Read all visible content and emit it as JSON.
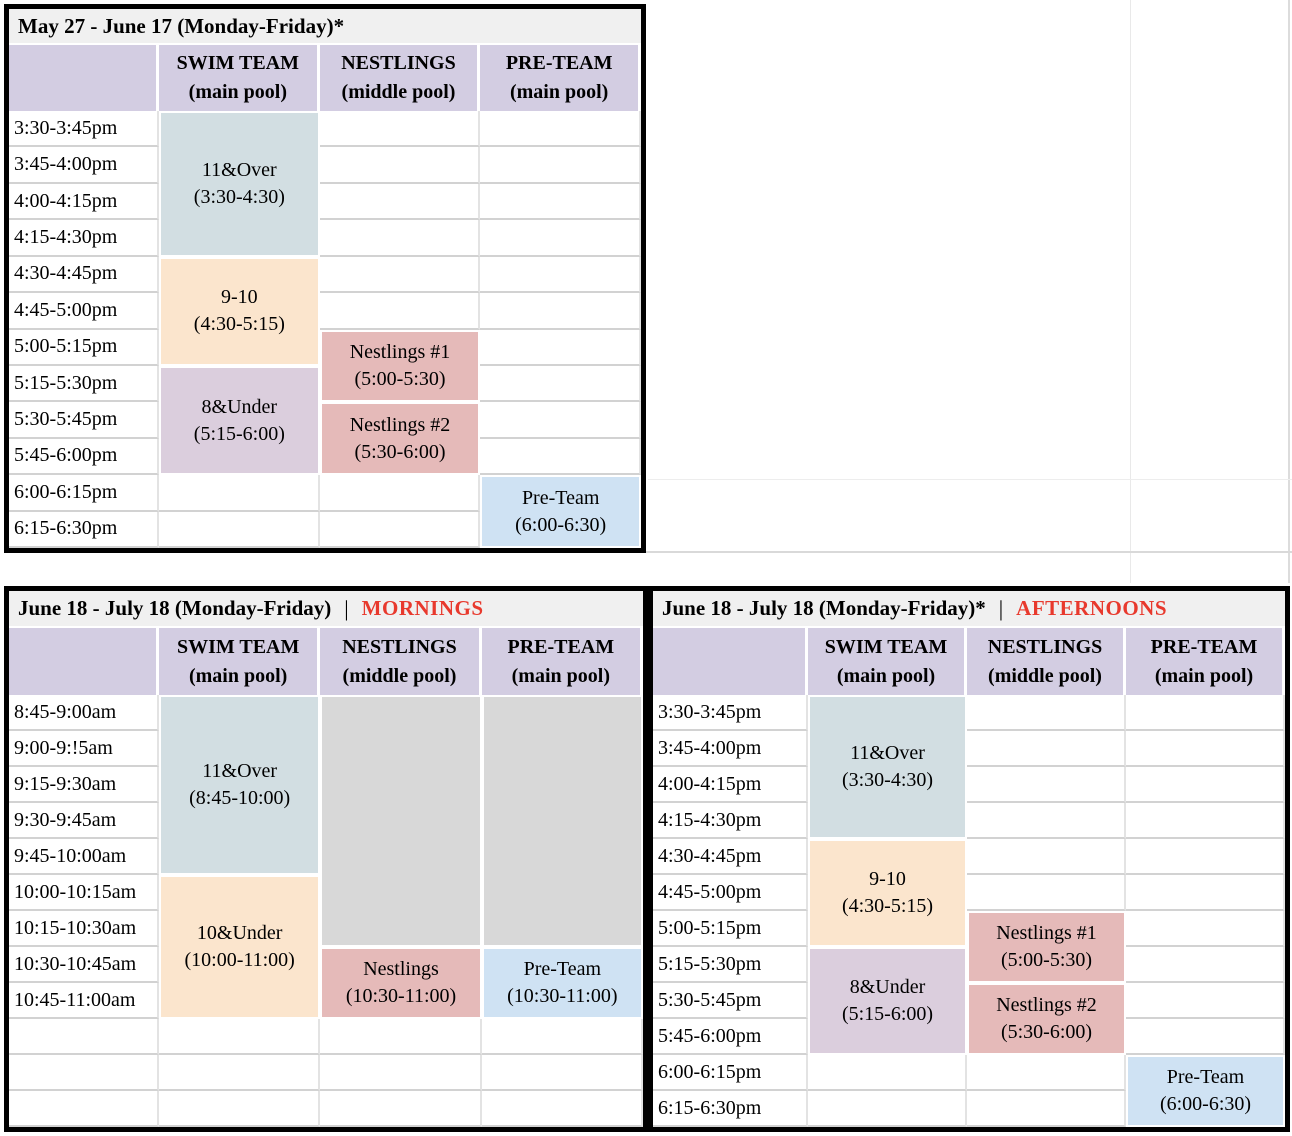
{
  "colors": {
    "title_bg": "#f0f0f0",
    "header_bg": "#d3cde2",
    "teal": "#d2dee2",
    "peach": "#fbe5cd",
    "mauve": "#dbcedd",
    "rose": "#e5bab9",
    "blue": "#cfe2f3",
    "gray": "#d8d8d8",
    "highlight_red": "#e8392d"
  },
  "schedules": [
    {
      "title": {
        "text": "May 27 - June 17 (Monday-Friday)*",
        "separator": "",
        "highlight": ""
      },
      "headers": [
        {
          "name": "",
          "sub": ""
        },
        {
          "name": "SWIM TEAM",
          "sub": "(main pool)"
        },
        {
          "name": "NESTLINGS",
          "sub": "(middle pool)"
        },
        {
          "name": "PRE-TEAM",
          "sub": "(main pool)"
        }
      ],
      "times": [
        "3:30-3:45pm",
        "3:45-4:00pm",
        "4:00-4:15pm",
        "4:15-4:30pm",
        "4:30-4:45pm",
        "4:45-5:00pm",
        "5:00-5:15pm",
        "5:15-5:30pm",
        "5:30-5:45pm",
        "5:45-6:00pm",
        "6:00-6:15pm",
        "6:15-6:30pm"
      ],
      "blocks": [
        {
          "col": 1,
          "row": 0,
          "span": 4,
          "label": "11&Over",
          "time": "(3:30-4:30)",
          "color": "teal"
        },
        {
          "col": 1,
          "row": 4,
          "span": 3,
          "label": "9-10",
          "time": "(4:30-5:15)",
          "color": "peach"
        },
        {
          "col": 1,
          "row": 7,
          "span": 3,
          "label": "8&Under",
          "time": "(5:15-6:00)",
          "color": "mauve"
        },
        {
          "col": 2,
          "row": 6,
          "span": 2,
          "label": "Nestlings #1",
          "time": "(5:00-5:30)",
          "color": "rose"
        },
        {
          "col": 2,
          "row": 8,
          "span": 2,
          "label": "Nestlings #2",
          "time": "(5:30-6:00)",
          "color": "rose"
        },
        {
          "col": 3,
          "row": 10,
          "span": 2,
          "label": "Pre-Team",
          "time": "(6:00-6:30)",
          "color": "blue"
        }
      ]
    },
    {
      "title": {
        "text": "June 18 - July 18 (Monday-Friday)",
        "separator": "|",
        "highlight": "MORNINGS"
      },
      "headers": [
        {
          "name": "",
          "sub": ""
        },
        {
          "name": "SWIM TEAM",
          "sub": "(main pool)"
        },
        {
          "name": "NESTLINGS",
          "sub": "(middle pool)"
        },
        {
          "name": "PRE-TEAM",
          "sub": "(main pool)"
        }
      ],
      "times": [
        "8:45-9:00am",
        "9:00-9:!5am",
        "9:15-9:30am",
        "9:30-9:45am",
        "9:45-10:00am",
        "10:00-10:15am",
        "10:15-10:30am",
        "10:30-10:45am",
        "10:45-11:00am",
        "",
        "",
        ""
      ],
      "blocks": [
        {
          "col": 1,
          "row": 0,
          "span": 5,
          "label": "11&Over",
          "time": "(8:45-10:00)",
          "color": "teal"
        },
        {
          "col": 1,
          "row": 5,
          "span": 4,
          "label": "10&Under",
          "time": "(10:00-11:00)",
          "color": "peach"
        },
        {
          "col": 2,
          "row": 0,
          "span": 7,
          "label": "",
          "time": "",
          "color": "gray"
        },
        {
          "col": 2,
          "row": 7,
          "span": 2,
          "label": "Nestlings",
          "time": "(10:30-11:00)",
          "color": "rose"
        },
        {
          "col": 3,
          "row": 0,
          "span": 7,
          "label": "",
          "time": "",
          "color": "gray"
        },
        {
          "col": 3,
          "row": 7,
          "span": 2,
          "label": "Pre-Team",
          "time": "(10:30-11:00)",
          "color": "blue"
        }
      ]
    },
    {
      "title": {
        "text": "June 18 - July 18 (Monday-Friday)*",
        "separator": "|",
        "highlight": "AFTERNOONS"
      },
      "headers": [
        {
          "name": "",
          "sub": ""
        },
        {
          "name": "SWIM TEAM",
          "sub": "(main pool)"
        },
        {
          "name": "NESTLINGS",
          "sub": "(middle pool)"
        },
        {
          "name": "PRE-TEAM",
          "sub": "(main pool)"
        }
      ],
      "times": [
        "3:30-3:45pm",
        "3:45-4:00pm",
        "4:00-4:15pm",
        "4:15-4:30pm",
        "4:30-4:45pm",
        "4:45-5:00pm",
        "5:00-5:15pm",
        "5:15-5:30pm",
        "5:30-5:45pm",
        "5:45-6:00pm",
        "6:00-6:15pm",
        "6:15-6:30pm"
      ],
      "blocks": [
        {
          "col": 1,
          "row": 0,
          "span": 4,
          "label": "11&Over",
          "time": "(3:30-4:30)",
          "color": "teal"
        },
        {
          "col": 1,
          "row": 4,
          "span": 3,
          "label": "9-10",
          "time": "(4:30-5:15)",
          "color": "peach"
        },
        {
          "col": 1,
          "row": 7,
          "span": 3,
          "label": "8&Under",
          "time": "(5:15-6:00)",
          "color": "mauve"
        },
        {
          "col": 2,
          "row": 6,
          "span": 2,
          "label": "Nestlings #1",
          "time": "(5:00-5:30)",
          "color": "rose"
        },
        {
          "col": 2,
          "row": 8,
          "span": 2,
          "label": "Nestlings #2",
          "time": "(5:30-6:00)",
          "color": "rose"
        },
        {
          "col": 3,
          "row": 10,
          "span": 2,
          "label": "Pre-Team",
          "time": "(6:00-6:30)",
          "color": "blue"
        }
      ]
    }
  ]
}
